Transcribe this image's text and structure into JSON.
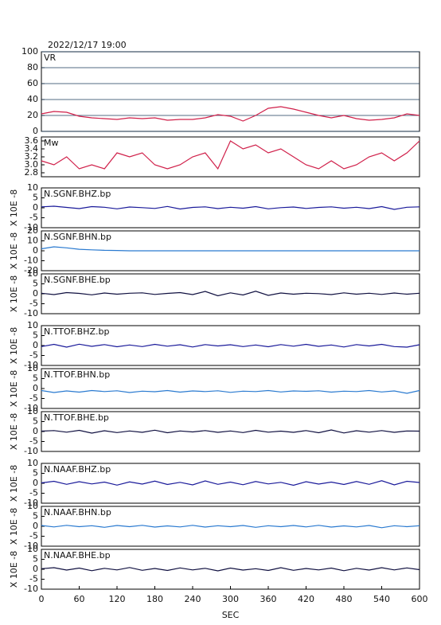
{
  "chart_data": [
    {
      "type": "line",
      "title": "2022/12/17 19:00",
      "label": "VR",
      "color": "#d0204a",
      "grid": true,
      "x": [
        0,
        20,
        40,
        60,
        80,
        100,
        120,
        140,
        160,
        180,
        200,
        220,
        240,
        260,
        280,
        300,
        320,
        340,
        360,
        380,
        400,
        420,
        440,
        460,
        480,
        500,
        520,
        540,
        560,
        580,
        600
      ],
      "values": [
        22,
        25,
        24,
        19,
        17,
        16,
        15,
        17,
        16,
        17,
        14,
        15,
        15,
        17,
        21,
        19,
        13,
        20,
        29,
        31,
        28,
        24,
        20,
        17,
        20,
        16,
        14,
        15,
        17,
        22,
        20
      ],
      "xlim": [
        0,
        600
      ],
      "ylim": [
        0,
        100
      ],
      "yticks": [
        0,
        20,
        40,
        60,
        80,
        100
      ]
    },
    {
      "type": "line",
      "label": "Mw",
      "color": "#d0204a",
      "x": [
        0,
        20,
        40,
        60,
        80,
        100,
        120,
        140,
        160,
        180,
        200,
        220,
        240,
        260,
        280,
        300,
        320,
        340,
        360,
        380,
        400,
        420,
        440,
        460,
        480,
        500,
        520,
        540,
        560,
        580,
        600
      ],
      "values": [
        3.1,
        3.0,
        3.2,
        2.9,
        3.0,
        2.9,
        3.3,
        3.2,
        3.3,
        3.0,
        2.9,
        3.0,
        3.2,
        3.3,
        2.9,
        3.6,
        3.4,
        3.5,
        3.3,
        3.4,
        3.2,
        3.0,
        2.9,
        3.1,
        2.9,
        3.0,
        3.2,
        3.3,
        3.1,
        3.3,
        3.6
      ],
      "xlim": [
        0,
        600
      ],
      "ylim": [
        2.7,
        3.7
      ],
      "yticks": [
        2.8,
        {
          "value": 3,
          "label": "3.0"
        },
        3.2,
        3.4,
        3.6
      ]
    },
    {
      "type": "line",
      "label": "N.SGNF.BHZ.bp",
      "ylabel": "X 10E -8",
      "color": "#1a1a9a",
      "x": [
        0,
        20,
        40,
        60,
        80,
        100,
        120,
        140,
        160,
        180,
        200,
        220,
        240,
        260,
        280,
        300,
        320,
        340,
        360,
        380,
        400,
        420,
        440,
        460,
        480,
        500,
        520,
        540,
        560,
        580,
        600
      ],
      "values": [
        0.5,
        0.8,
        0.2,
        -0.4,
        0.6,
        0.3,
        -0.5,
        0.4,
        0.1,
        -0.3,
        0.7,
        -0.6,
        0.2,
        0.5,
        -0.4,
        0.3,
        -0.2,
        0.6,
        -0.5,
        0.1,
        0.4,
        -0.3,
        0.2,
        0.5,
        -0.2,
        0.3,
        -0.4,
        0.6,
        -0.8,
        0.3,
        0.5
      ],
      "xlim": [
        0,
        600
      ],
      "ylim": [
        -10,
        10
      ],
      "yticks": [
        -10,
        -5,
        0,
        5,
        10
      ]
    },
    {
      "type": "line",
      "label": "N.SGNF.BHN.bp",
      "ylabel": "X 10E -8",
      "color": "#2a7ad0",
      "x": [
        0,
        20,
        40,
        60,
        80,
        100,
        120,
        140,
        160,
        180,
        200,
        220,
        240,
        260,
        280,
        300,
        320,
        340,
        360,
        380,
        400,
        420,
        440,
        460,
        480,
        500,
        520,
        540,
        560,
        580,
        600
      ],
      "values": [
        2,
        4,
        3,
        1.5,
        1,
        0.5,
        0.3,
        0,
        0,
        0,
        0,
        0,
        0,
        0,
        0,
        0,
        0,
        0,
        0,
        0,
        0,
        0,
        0,
        0,
        0,
        0,
        0,
        0,
        0,
        0,
        0
      ],
      "xlim": [
        0,
        600
      ],
      "ylim": [
        -20,
        20
      ],
      "yticks": [
        -20,
        -10,
        0,
        10,
        20
      ]
    },
    {
      "type": "line",
      "label": "N.SGNF.BHE.bp",
      "ylabel": "X 10E -8",
      "color": "#101040",
      "x": [
        0,
        20,
        40,
        60,
        80,
        100,
        120,
        140,
        160,
        180,
        200,
        220,
        240,
        260,
        280,
        300,
        320,
        340,
        360,
        380,
        400,
        420,
        440,
        460,
        480,
        500,
        520,
        540,
        560,
        580,
        600
      ],
      "values": [
        0.3,
        -0.4,
        0.6,
        0.2,
        -0.5,
        0.4,
        -0.2,
        0.3,
        0.5,
        -0.3,
        0.2,
        0.6,
        -0.4,
        1.2,
        -1,
        0.5,
        -0.6,
        1.3,
        -0.8,
        0.4,
        -0.2,
        0.3,
        0.1,
        -0.4,
        0.5,
        -0.2,
        0.3,
        -0.3,
        0.4,
        -0.2,
        0.3
      ],
      "xlim": [
        0,
        600
      ],
      "ylim": [
        -10,
        10
      ],
      "yticks": [
        -10,
        -5,
        0,
        5,
        10
      ]
    },
    {
      "type": "line",
      "label": "N.TTOF.BHZ.bp",
      "ylabel": "X 10E -8",
      "color": "#1a1a9a",
      "x": [
        0,
        20,
        40,
        60,
        80,
        100,
        120,
        140,
        160,
        180,
        200,
        220,
        240,
        260,
        280,
        300,
        320,
        340,
        360,
        380,
        400,
        420,
        440,
        460,
        480,
        500,
        520,
        540,
        560,
        580,
        600
      ],
      "values": [
        -0.5,
        0.6,
        -0.8,
        0.7,
        -0.4,
        0.5,
        -0.6,
        0.3,
        -0.5,
        0.6,
        -0.3,
        0.4,
        -0.7,
        0.5,
        -0.2,
        0.4,
        -0.5,
        0.3,
        -0.6,
        0.5,
        -0.3,
        0.6,
        -0.4,
        0.3,
        -0.7,
        0.5,
        -0.2,
        0.6,
        -0.5,
        -0.8,
        0.4
      ],
      "xlim": [
        0,
        600
      ],
      "ylim": [
        -10,
        10
      ],
      "yticks": [
        -10,
        -5,
        0,
        5,
        10
      ]
    },
    {
      "type": "line",
      "label": "N.TTOF.BHN.bp",
      "ylabel": "X 10E -8",
      "color": "#2a7ad0",
      "x": [
        0,
        20,
        40,
        60,
        80,
        100,
        120,
        140,
        160,
        180,
        200,
        220,
        240,
        260,
        280,
        300,
        320,
        340,
        360,
        380,
        400,
        420,
        440,
        460,
        480,
        500,
        520,
        540,
        560,
        580,
        600
      ],
      "values": [
        -1,
        -2,
        -1.2,
        -1.8,
        -1,
        -1.5,
        -1.1,
        -2,
        -1.3,
        -1.6,
        -1,
        -1.8,
        -1.2,
        -1.5,
        -1.1,
        -1.9,
        -1.3,
        -1.5,
        -1,
        -1.7,
        -1.2,
        -1.4,
        -1.1,
        -1.8,
        -1.3,
        -1.5,
        -1,
        -1.7,
        -1.2,
        -2.4,
        -1
      ],
      "xlim": [
        0,
        600
      ],
      "ylim": [
        -10,
        10
      ],
      "yticks": [
        -10,
        -5,
        0,
        5,
        10
      ]
    },
    {
      "type": "line",
      "label": "N.TTOF.BHE.bp",
      "ylabel": "X 10E -8",
      "color": "#101040",
      "x": [
        0,
        20,
        40,
        60,
        80,
        100,
        120,
        140,
        160,
        180,
        200,
        220,
        240,
        260,
        280,
        300,
        320,
        340,
        360,
        380,
        400,
        420,
        440,
        460,
        480,
        500,
        520,
        540,
        560,
        580,
        600
      ],
      "values": [
        0.2,
        0.5,
        -0.3,
        0.6,
        -0.8,
        0.4,
        -0.5,
        0.3,
        -0.4,
        0.7,
        -0.6,
        0.3,
        -0.2,
        0.5,
        -0.4,
        0.3,
        -0.5,
        0.6,
        -0.3,
        0.2,
        -0.4,
        0.5,
        -0.6,
        0.8,
        -0.7,
        0.4,
        -0.3,
        0.5,
        -0.4,
        0.3,
        0.2
      ],
      "xlim": [
        0,
        600
      ],
      "ylim": [
        -10,
        10
      ],
      "yticks": [
        -10,
        -5,
        0,
        5,
        10
      ]
    },
    {
      "type": "line",
      "label": "N.NAAF.BHZ.bp",
      "ylabel": "X 10E -8",
      "color": "#1a1a9a",
      "x": [
        0,
        20,
        40,
        60,
        80,
        100,
        120,
        140,
        160,
        180,
        200,
        220,
        240,
        260,
        280,
        300,
        320,
        340,
        360,
        380,
        400,
        420,
        440,
        460,
        480,
        500,
        520,
        540,
        560,
        580,
        600
      ],
      "values": [
        0.2,
        1,
        -0.5,
        0.8,
        -0.3,
        0.6,
        -0.9,
        0.7,
        -0.4,
        1.1,
        -0.6,
        0.5,
        -0.8,
        1.2,
        -0.5,
        0.6,
        -0.7,
        0.9,
        -0.3,
        0.5,
        -1,
        0.8,
        -0.4,
        0.6,
        -0.6,
        0.9,
        -0.5,
        1.3,
        -0.8,
        1,
        0.4
      ],
      "xlim": [
        0,
        600
      ],
      "ylim": [
        -10,
        10
      ],
      "yticks": [
        -10,
        -5,
        0,
        5,
        10
      ]
    },
    {
      "type": "line",
      "label": "N.NAAF.BHN.bp",
      "ylabel": "X 10E -8",
      "color": "#2a7ad0",
      "x": [
        0,
        20,
        40,
        60,
        80,
        100,
        120,
        140,
        160,
        180,
        200,
        220,
        240,
        260,
        280,
        300,
        320,
        340,
        360,
        380,
        400,
        420,
        440,
        460,
        480,
        500,
        520,
        540,
        560,
        580,
        600
      ],
      "values": [
        0.4,
        -0.3,
        0.5,
        -0.2,
        0.3,
        -0.5,
        0.4,
        -0.2,
        0.5,
        -0.4,
        0.2,
        -0.3,
        0.5,
        -0.4,
        0.3,
        -0.2,
        0.4,
        -0.5,
        0.3,
        -0.2,
        0.4,
        -0.3,
        0.5,
        -0.4,
        0.2,
        -0.3,
        0.4,
        -0.7,
        0.3,
        -0.2,
        0.3
      ],
      "xlim": [
        0,
        600
      ],
      "ylim": [
        -10,
        10
      ],
      "yticks": [
        -10,
        -5,
        0,
        5,
        10
      ]
    },
    {
      "type": "line",
      "label": "N.NAAF.BHE.bp",
      "ylabel": "X 10E -8",
      "color": "#101040",
      "x": [
        0,
        20,
        40,
        60,
        80,
        100,
        120,
        140,
        160,
        180,
        200,
        220,
        240,
        260,
        280,
        300,
        320,
        340,
        360,
        380,
        400,
        420,
        440,
        460,
        480,
        500,
        520,
        540,
        560,
        580,
        600
      ],
      "values": [
        0.3,
        0.8,
        -0.4,
        0.6,
        -0.7,
        0.5,
        -0.3,
        0.9,
        -0.5,
        0.4,
        -0.6,
        0.7,
        -0.3,
        0.5,
        -0.8,
        0.6,
        -0.4,
        0.3,
        -0.6,
        0.8,
        -0.5,
        0.4,
        -0.3,
        0.6,
        -0.7,
        0.5,
        -0.4,
        0.8,
        -0.3,
        0.7,
        -0.2
      ],
      "xlim": [
        0,
        600
      ],
      "ylim": [
        -10,
        10
      ],
      "yticks": [
        -10,
        -5,
        0,
        5,
        10
      ],
      "xticks": [
        0,
        60,
        120,
        180,
        240,
        300,
        360,
        420,
        480,
        540,
        600
      ],
      "xlabel": "SEC"
    }
  ]
}
